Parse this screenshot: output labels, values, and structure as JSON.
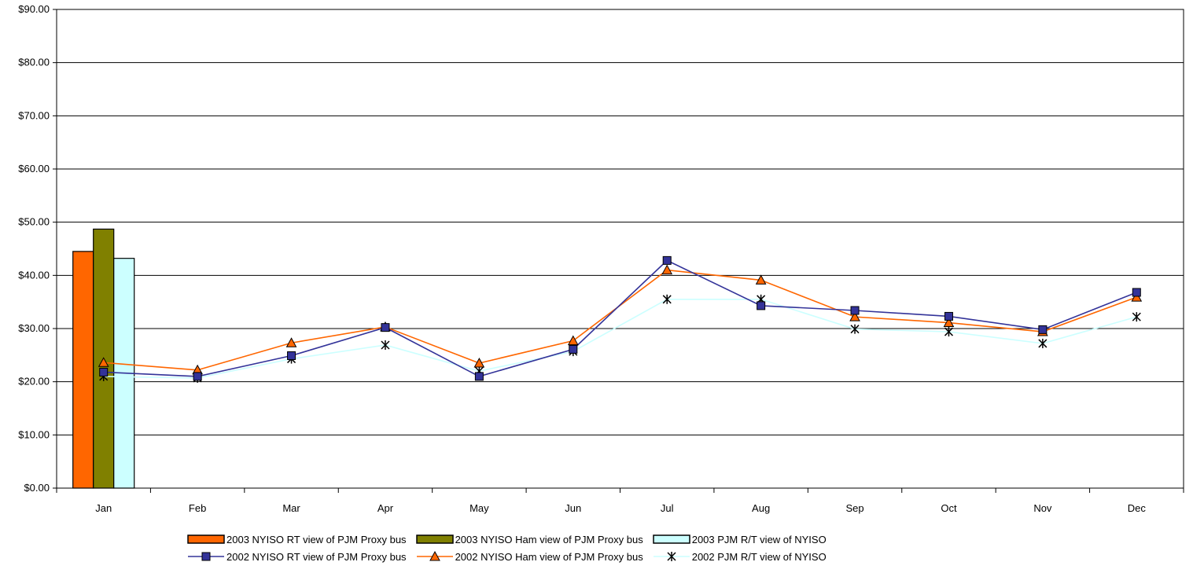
{
  "chart_data": {
    "type": "bar",
    "categories": [
      "Jan",
      "Feb",
      "Mar",
      "Apr",
      "May",
      "Jun",
      "Jul",
      "Aug",
      "Sep",
      "Oct",
      "Nov",
      "Dec"
    ],
    "ylim": [
      0,
      90
    ],
    "y_ticks": [
      "$0.00",
      "$10.00",
      "$20.00",
      "$30.00",
      "$40.00",
      "$50.00",
      "$60.00",
      "$70.00",
      "$80.00",
      "$90.00"
    ],
    "grid": true,
    "legend_position": "bottom",
    "bar_series": [
      {
        "name": "2003 NYISO RT view of PJM Proxy bus",
        "color": "#FF6600",
        "values": [
          44.5,
          null,
          null,
          null,
          null,
          null,
          null,
          null,
          null,
          null,
          null,
          null
        ]
      },
      {
        "name": "2003 NYISO Ham view of PJM Proxy bus",
        "color": "#808000",
        "values": [
          48.7,
          null,
          null,
          null,
          null,
          null,
          null,
          null,
          null,
          null,
          null,
          null
        ]
      },
      {
        "name": "2003 PJM R/T view of NYISO",
        "color": "#CCFFFF",
        "values": [
          43.2,
          null,
          null,
          null,
          null,
          null,
          null,
          null,
          null,
          null,
          null,
          null
        ]
      }
    ],
    "line_series": [
      {
        "name": "2002 NYISO RT view of PJM Proxy bus",
        "color": "#333399",
        "marker": "square",
        "values": [
          21.8,
          21.0,
          24.9,
          30.2,
          21.0,
          26.1,
          42.8,
          34.3,
          33.4,
          32.3,
          29.8,
          36.8
        ]
      },
      {
        "name": "2002 NYISO Ham view of PJM Proxy bus",
        "color": "#FF6600",
        "marker": "triangle",
        "values": [
          23.6,
          22.2,
          27.3,
          30.3,
          23.5,
          27.7,
          41.0,
          39.1,
          32.2,
          31.1,
          29.4,
          35.9
        ]
      },
      {
        "name": "2002 PJM R/T view of NYISO",
        "color": "#CCFFFF",
        "marker": "star",
        "values": [
          21.0,
          20.7,
          24.3,
          26.9,
          22.0,
          25.7,
          35.5,
          35.5,
          29.9,
          29.4,
          27.2,
          32.2
        ]
      }
    ]
  }
}
